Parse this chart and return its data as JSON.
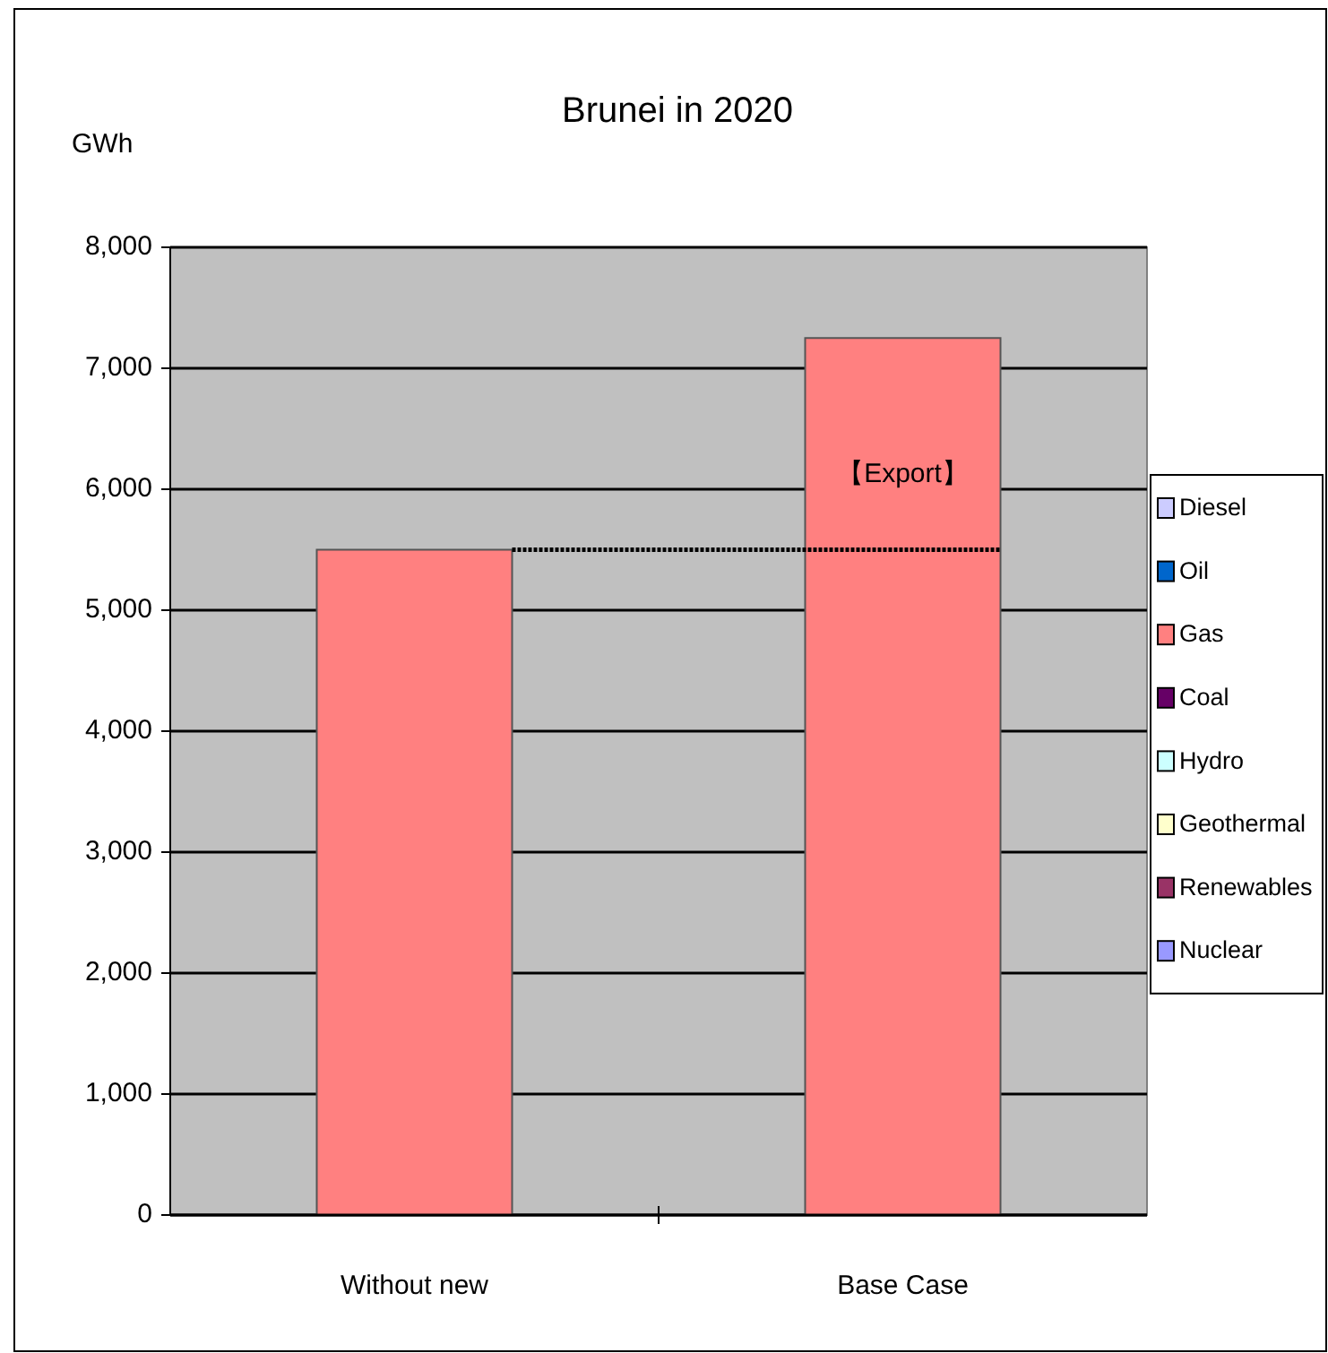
{
  "chart_data": {
    "type": "bar",
    "title": "Brunei in 2020",
    "ylabel": "GWh",
    "categories": [
      "Without new",
      "Base Case"
    ],
    "stacked": true,
    "series": [
      {
        "name": "Diesel",
        "color": "#ccccff",
        "values": [
          0,
          0
        ]
      },
      {
        "name": "Oil",
        "color": "#0066cc",
        "values": [
          0,
          0
        ]
      },
      {
        "name": "Gas",
        "color": "#ff8080",
        "values": [
          5500,
          7250
        ]
      },
      {
        "name": "Coal",
        "color": "#660066",
        "values": [
          0,
          0
        ]
      },
      {
        "name": "Hydro",
        "color": "#ccffff",
        "values": [
          0,
          0
        ]
      },
      {
        "name": "Geothermal",
        "color": "#ffffcc",
        "values": [
          0,
          0
        ]
      },
      {
        "name": "Renewables",
        "color": "#993366",
        "values": [
          0,
          0
        ]
      },
      {
        "name": "Nuclear",
        "color": "#9999ff",
        "values": [
          0,
          0
        ]
      }
    ],
    "ylim": [
      0,
      8000
    ],
    "yticks": [
      {
        "value": 0,
        "label": "0"
      },
      {
        "value": 1000,
        "label": "1,000"
      },
      {
        "value": 2000,
        "label": "2,000"
      },
      {
        "value": 3000,
        "label": "3,000"
      },
      {
        "value": 4000,
        "label": "4,000"
      },
      {
        "value": 5000,
        "label": "5,000"
      },
      {
        "value": 6000,
        "label": "6,000"
      },
      {
        "value": 7000,
        "label": "7,000"
      },
      {
        "value": 8000,
        "label": "8,000"
      }
    ],
    "grid": "y",
    "legend": "right",
    "ref_lines": [
      {
        "axis": "y",
        "value": 5500,
        "line_style": "dotted",
        "color": "#000000"
      }
    ],
    "annotations": [
      "【Export】"
    ]
  }
}
